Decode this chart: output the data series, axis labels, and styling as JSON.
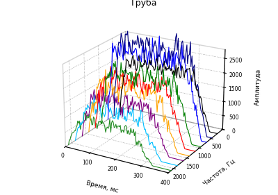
{
  "title": "Труба",
  "xlabel": "Частота, Гц",
  "ylabel": "Время, мс",
  "zlabel": "Амплитуда",
  "freq_ticks": [
    0,
    500,
    1000,
    1500,
    2000
  ],
  "time_ticks": [
    0,
    100,
    200,
    300,
    400
  ],
  "amp_ticks": [
    0,
    500,
    1000,
    1500,
    2000,
    2500
  ],
  "freq_values": [
    233,
    466,
    699,
    932,
    1165,
    1398,
    1631,
    1864,
    2097
  ],
  "n_time": 120,
  "zlim": [
    0,
    2800
  ],
  "freq_lim": [
    0,
    2200
  ],
  "time_lim": [
    0,
    400
  ],
  "colors": [
    "#000000",
    "#000080",
    "#0000FF",
    "#008000",
    "#FF0000",
    "#FFA500",
    "#800080",
    "#00BFFF",
    "#228B22",
    "#8B0000",
    "#FFD700",
    "#DC143C"
  ]
}
